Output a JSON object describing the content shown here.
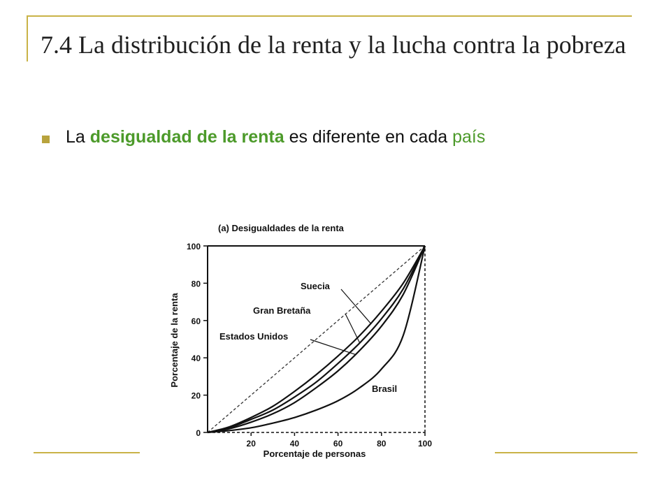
{
  "slide": {
    "title": "7.4 La distribución de la renta y la lucha contra la pobreza",
    "bullet": {
      "part1": "La ",
      "part2": "desigualdad de la renta",
      "part3": " es diferente en cada ",
      "part4": "país"
    },
    "colors": {
      "rule": "#c9b347",
      "highlight": "#4c9a2a",
      "bullet": "#b8a33d"
    }
  },
  "chart_data": {
    "type": "line",
    "title": "(a) Desigualdades de la renta",
    "xlabel": "Porcentaje de personas",
    "ylabel": "Porcentaje de la renta",
    "xlim": [
      0,
      100
    ],
    "ylim": [
      0,
      100
    ],
    "x_ticks": [
      "20",
      "40",
      "60",
      "80",
      "100"
    ],
    "y_ticks": [
      "0",
      "20",
      "40",
      "60",
      "80",
      "100"
    ],
    "series": [
      {
        "name": "Suecia",
        "x": [
          0,
          10,
          20,
          30,
          40,
          50,
          60,
          70,
          80,
          90,
          100
        ],
        "y": [
          0,
          3,
          8,
          14,
          22,
          31,
          41,
          52,
          65,
          80,
          100
        ]
      },
      {
        "name": "Gran Bretaña",
        "x": [
          0,
          10,
          20,
          30,
          40,
          50,
          60,
          70,
          80,
          90,
          100
        ],
        "y": [
          0,
          2.5,
          7,
          12,
          19,
          27,
          37,
          48,
          61,
          77,
          100
        ]
      },
      {
        "name": "Estados Unidos",
        "x": [
          0,
          10,
          20,
          30,
          40,
          50,
          60,
          70,
          80,
          90,
          100
        ],
        "y": [
          0,
          2,
          5.5,
          10,
          16,
          24,
          33,
          44,
          57,
          74,
          100
        ]
      },
      {
        "name": "Brasil",
        "x": [
          0,
          10,
          20,
          30,
          40,
          50,
          60,
          70,
          80,
          90,
          100
        ],
        "y": [
          0,
          1,
          2.5,
          5,
          8,
          12,
          17,
          24,
          34,
          52,
          100
        ]
      }
    ],
    "equality_line": {
      "x": [
        0,
        100
      ],
      "y": [
        0,
        100
      ]
    }
  }
}
